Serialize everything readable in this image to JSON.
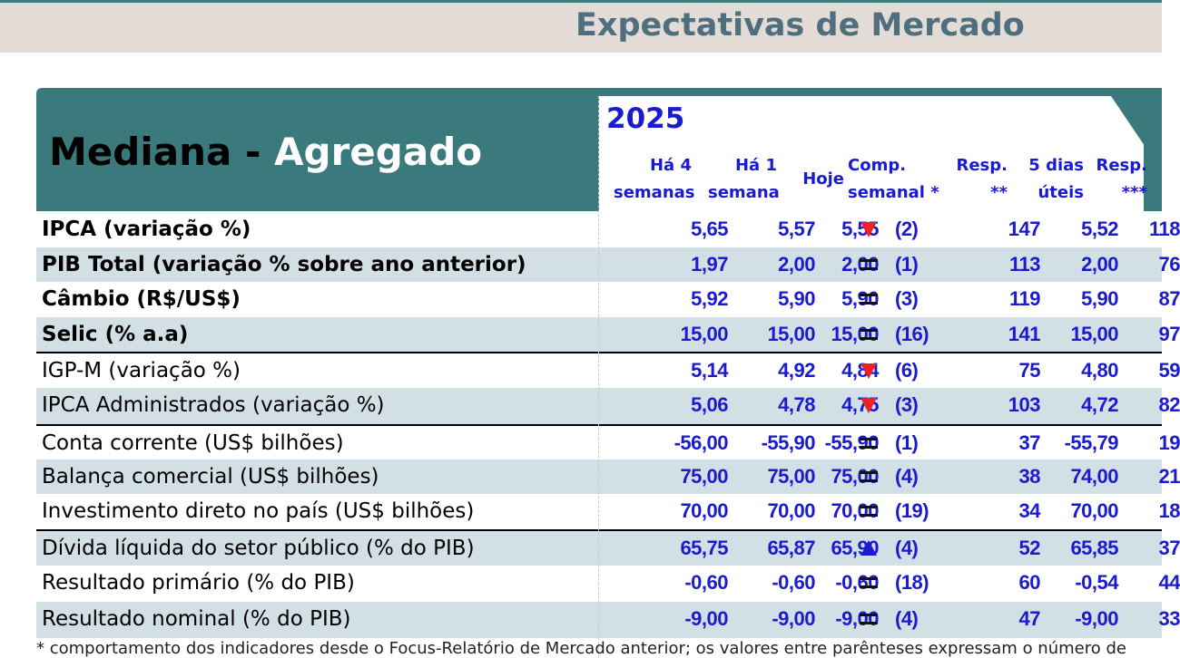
{
  "page_title": "Expectativas de Mercado",
  "main_title_part1": "Mediana",
  "main_title_sep": " - ",
  "main_title_part2": "Agregado",
  "year": "2025",
  "columns": {
    "h4_line1": "Há 4",
    "h4_line2": "semanas",
    "h1_line1": "Há 1",
    "h1_line2": "semana",
    "hoje": "Hoje",
    "comp_line1": "Comp.",
    "comp_line2": "semanal *",
    "resp_line1": "Resp.",
    "resp_line2": "**",
    "d5_line1": "5 dias",
    "d5_line2": "úteis",
    "resp3_line1": "Resp.",
    "resp3_line2": "***"
  },
  "rows": [
    {
      "label": "IPCA (variação %)",
      "h4": "5,65",
      "h1": "5,57",
      "hoje": "5,55",
      "trend": "down-icon",
      "weeks": "(2)",
      "resp": "147",
      "d5": "5,52",
      "resp3": "118"
    },
    {
      "label": "PIB Total (variação % sobre ano anterior)",
      "h4": "1,97",
      "h1": "2,00",
      "hoje": "2,00",
      "trend": "equal-icon",
      "weeks": "(1)",
      "resp": "113",
      "d5": "2,00",
      "resp3": "76"
    },
    {
      "label": "Câmbio (R$/US$)",
      "h4": "5,92",
      "h1": "5,90",
      "hoje": "5,90",
      "trend": "equal-icon",
      "weeks": "(3)",
      "resp": "119",
      "d5": "5,90",
      "resp3": "87"
    },
    {
      "label": "Selic (% a.a)",
      "h4": "15,00",
      "h1": "15,00",
      "hoje": "15,00",
      "trend": "equal-icon",
      "weeks": "(16)",
      "resp": "141",
      "d5": "15,00",
      "resp3": "97"
    },
    {
      "label": "IGP-M (variação %)",
      "h4": "5,14",
      "h1": "4,92",
      "hoje": "4,84",
      "trend": "down-icon",
      "weeks": "(6)",
      "resp": "75",
      "d5": "4,80",
      "resp3": "59"
    },
    {
      "label": "IPCA Administrados (variação %)",
      "h4": "5,06",
      "h1": "4,78",
      "hoje": "4,75",
      "trend": "down-icon",
      "weeks": "(3)",
      "resp": "103",
      "d5": "4,72",
      "resp3": "82"
    },
    {
      "label": "Conta corrente (US$ bilhões)",
      "h4": "-56,00",
      "h1": "-55,90",
      "hoje": "-55,90",
      "trend": "equal-icon",
      "weeks": "(1)",
      "resp": "37",
      "d5": "-55,79",
      "resp3": "19"
    },
    {
      "label": "Balança comercial (US$ bilhões)",
      "h4": "75,00",
      "h1": "75,00",
      "hoje": "75,00",
      "trend": "equal-icon",
      "weeks": "(4)",
      "resp": "38",
      "d5": "74,00",
      "resp3": "21"
    },
    {
      "label": "Investimento direto no país (US$ bilhões)",
      "h4": "70,00",
      "h1": "70,00",
      "hoje": "70,00",
      "trend": "equal-icon",
      "weeks": "(19)",
      "resp": "34",
      "d5": "70,00",
      "resp3": "18"
    },
    {
      "label": "Dívida líquida do setor público (% do PIB)",
      "h4": "65,75",
      "h1": "65,87",
      "hoje": "65,90",
      "trend": "up-icon",
      "weeks": "(4)",
      "resp": "52",
      "d5": "65,85",
      "resp3": "37"
    },
    {
      "label": "Resultado primário (% do PIB)",
      "h4": "-0,60",
      "h1": "-0,60",
      "hoje": "-0,60",
      "trend": "equal-icon",
      "weeks": "(18)",
      "resp": "60",
      "d5": "-0,54",
      "resp3": "44"
    },
    {
      "label": "Resultado nominal (% do PIB)",
      "h4": "-9,00",
      "h1": "-9,00",
      "hoje": "-9,00",
      "trend": "equal-icon",
      "weeks": "(4)",
      "resp": "47",
      "d5": "-9,00",
      "resp3": "33"
    }
  ],
  "footnote": "* comportamento dos indicadores desde o Focus-Relatório de Mercado anterior; os valores entre parênteses expressam o número de"
}
